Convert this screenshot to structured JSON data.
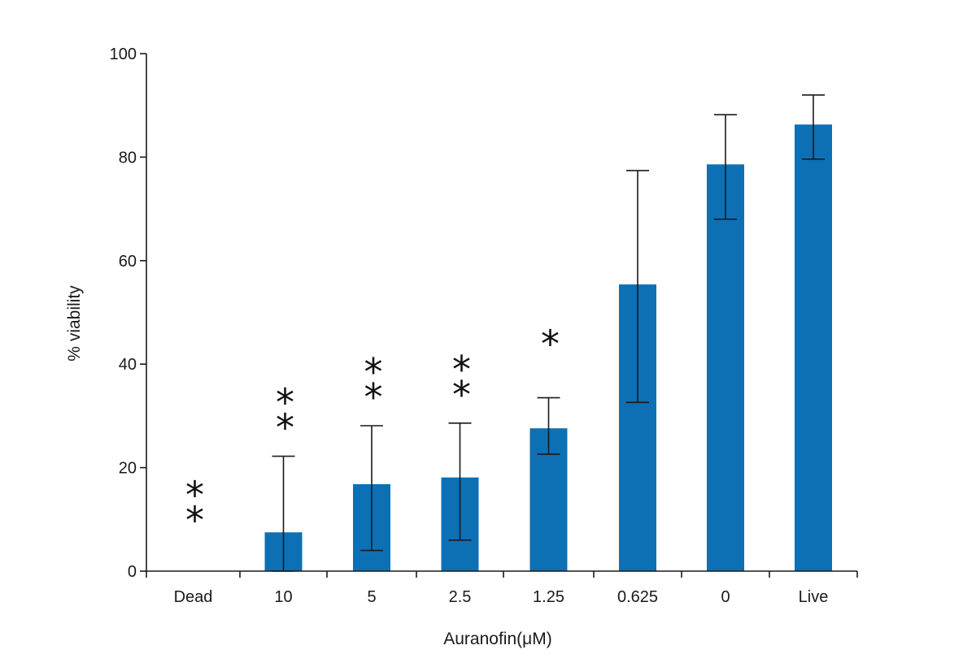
{
  "chart_data": {
    "type": "bar",
    "title": "",
    "xlabel": "Auranofin(μM)",
    "ylabel": "% viability",
    "categories": [
      "Dead",
      "10",
      "5",
      "2.5",
      "1.25",
      "0.625",
      "0",
      "Live"
    ],
    "series": [
      {
        "values": [
          0,
          7.5,
          16.8,
          18.1,
          27.6,
          55.4,
          78.6,
          86.3
        ],
        "error_upper": [
          null,
          22.2,
          28.1,
          28.6,
          33.5,
          77.4,
          88.2,
          92.0
        ],
        "error_lower": [
          null,
          0,
          4.0,
          6.0,
          22.6,
          32.6,
          68.0,
          79.6
        ]
      }
    ],
    "significance": [
      "**",
      "**",
      "**",
      "**",
      "*",
      "",
      "",
      ""
    ],
    "yticks": [
      0,
      20,
      40,
      60,
      80,
      100
    ],
    "ylim": [
      0,
      100
    ],
    "grid": false,
    "legend": "none",
    "bar_color": "#0d70b4"
  }
}
